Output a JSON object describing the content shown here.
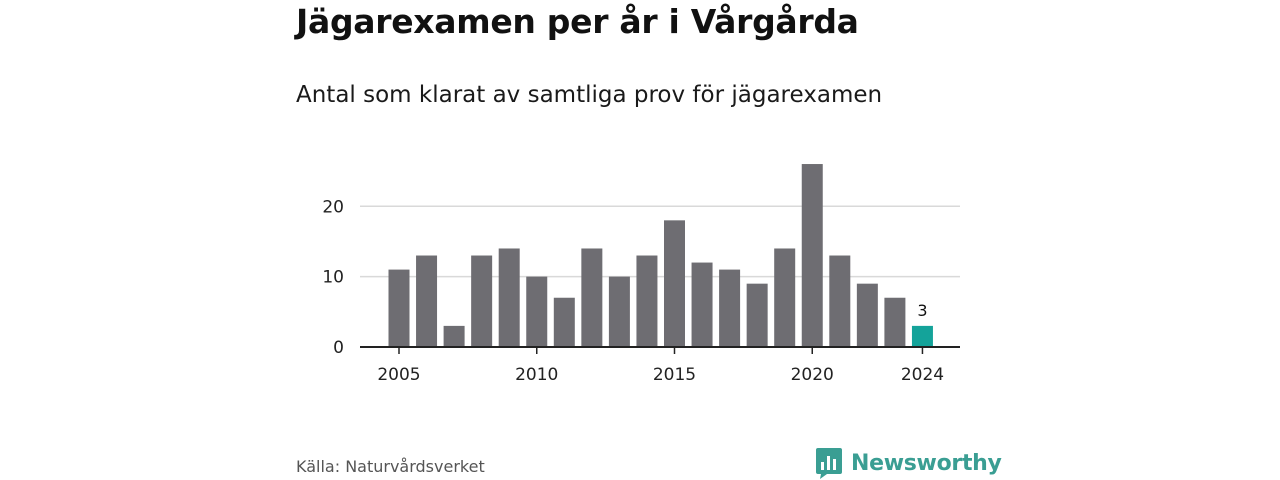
{
  "header": {
    "title": "Jägarexamen per år i Vårgårda",
    "subtitle": "Antal som klarat av samtliga prov för jägarexamen"
  },
  "footer": {
    "source": "Källa: Naturvårdsverket",
    "brand": "Newsworthy"
  },
  "colors": {
    "bar": "#6e6d72",
    "highlight": "#14a39a",
    "grid": "#d9d9d9",
    "axis": "#222222",
    "brand": "#3a9e93"
  },
  "icons": {
    "brand_logo": "bar-chart-speech-bubble-icon"
  },
  "chart_data": {
    "type": "bar",
    "title": "Jägarexamen per år i Vårgårda",
    "subtitle": "Antal som klarat av samtliga prov för jägarexamen",
    "x": [
      2005,
      2006,
      2007,
      2008,
      2009,
      2010,
      2011,
      2012,
      2013,
      2014,
      2015,
      2016,
      2017,
      2018,
      2019,
      2020,
      2021,
      2022,
      2023,
      2024
    ],
    "values": [
      11,
      13,
      3,
      13,
      14,
      10,
      7,
      14,
      10,
      13,
      18,
      12,
      11,
      9,
      14,
      26,
      13,
      9,
      7,
      3
    ],
    "xticks": [
      "2005",
      "2010",
      "2015",
      "2020",
      "2024"
    ],
    "yticks": [
      "0",
      "10",
      "20"
    ],
    "ylim": [
      0,
      27
    ],
    "xlabel": "",
    "ylabel": "",
    "grid": true,
    "highlight": {
      "x": 2024,
      "label": "3"
    }
  }
}
